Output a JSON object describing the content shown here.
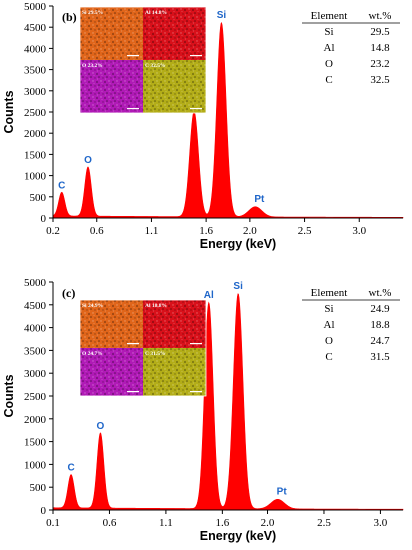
{
  "chart_data": [
    {
      "type": "spectrum",
      "panel": "(b)",
      "xlabel": "Energy (keV)",
      "ylabel": "Counts",
      "xlim": [
        0.2,
        3.4
      ],
      "ylim": [
        0,
        5000
      ],
      "xticks": [
        0.2,
        0.6,
        1.1,
        1.6,
        2.0,
        2.5,
        3.0
      ],
      "xtick_labels": [
        "0.2",
        "0.6",
        "1.1",
        "1.6",
        "2.0",
        "2.5",
        "3.0"
      ],
      "yticks": [
        0,
        500,
        1000,
        1500,
        2000,
        2500,
        3000,
        3500,
        4000,
        4500,
        5000
      ],
      "fill_color": "#ff0000",
      "label_color": "#1f66c9",
      "peaks": [
        {
          "label": "C",
          "x": 0.28,
          "y": 560,
          "width": 0.028
        },
        {
          "label": "O",
          "x": 0.52,
          "y": 1160,
          "width": 0.03
        },
        {
          "label": "",
          "x": 1.49,
          "y": 2480,
          "width": 0.04
        },
        {
          "label": "Si",
          "x": 1.74,
          "y": 4580,
          "width": 0.042
        },
        {
          "label": "Pt",
          "x": 2.05,
          "y": 240,
          "width": 0.06
        }
      ],
      "baseline": 50,
      "table": {
        "headers": [
          "Element",
          "wt.%"
        ],
        "rows": [
          [
            "Si",
            "29.5"
          ],
          [
            "Al",
            "14.8"
          ],
          [
            "O",
            "23.2"
          ],
          [
            "C",
            "32.5"
          ]
        ]
      },
      "maps": [
        {
          "label": "Si 29.5%",
          "color": "#e0651a"
        },
        {
          "label": "Al 14.8%",
          "color": "#d8101a"
        },
        {
          "label": "O 23.2%",
          "color": "#b01ab6"
        },
        {
          "label": "C 32.5%",
          "color": "#b3ad18"
        }
      ]
    },
    {
      "type": "spectrum",
      "panel": "(c)",
      "xlabel": "Energy (keV)",
      "ylabel": "Counts",
      "xlim": [
        0.1,
        3.2
      ],
      "ylim": [
        0,
        5000
      ],
      "xticks": [
        0.1,
        0.6,
        1.1,
        1.6,
        2.0,
        2.5,
        3.0
      ],
      "xtick_labels": [
        "0.1",
        "0.6",
        "1.1",
        "1.6",
        "2.0",
        "2.5",
        "3.0"
      ],
      "yticks": [
        0,
        500,
        1000,
        1500,
        2000,
        2500,
        3000,
        3500,
        4000,
        4500,
        5000
      ],
      "fill_color": "#ff0000",
      "label_color": "#1f66c9",
      "peaks": [
        {
          "label": "C",
          "x": 0.26,
          "y": 730,
          "width": 0.028
        },
        {
          "label": "O",
          "x": 0.52,
          "y": 1650,
          "width": 0.03
        },
        {
          "label": "Al",
          "x": 1.48,
          "y": 4520,
          "width": 0.038
        },
        {
          "label": "Si",
          "x": 1.74,
          "y": 4720,
          "width": 0.042
        },
        {
          "label": "Pt",
          "x": 2.09,
          "y": 210,
          "width": 0.06
        }
      ],
      "baseline": 50,
      "table": {
        "headers": [
          "Element",
          "wt.%"
        ],
        "rows": [
          [
            "Si",
            "24.9"
          ],
          [
            "Al",
            "18.8"
          ],
          [
            "O",
            "24.7"
          ],
          [
            "C",
            "31.5"
          ]
        ]
      },
      "maps": [
        {
          "label": "Si 24.9%",
          "color": "#e0651a"
        },
        {
          "label": "Al 18.8%",
          "color": "#d8101a"
        },
        {
          "label": "O 24.7%",
          "color": "#b01ab6"
        },
        {
          "label": "C 31.5%",
          "color": "#b3ad18"
        }
      ]
    }
  ]
}
